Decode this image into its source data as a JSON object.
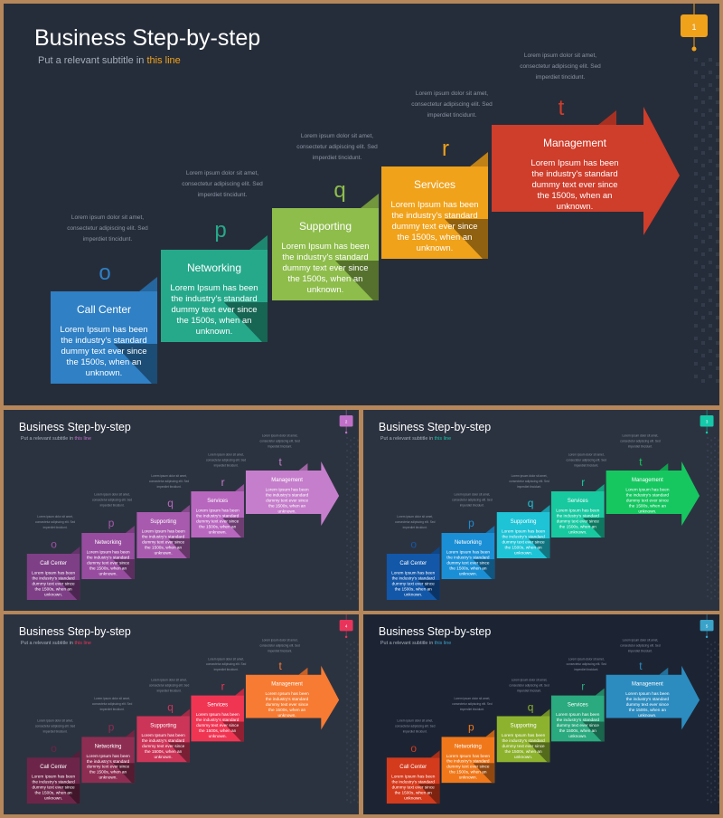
{
  "deck": {
    "title": "Business Step-by-step",
    "subtitle_prefix": "Put a relevant subtitle in ",
    "subtitle_highlight": "this line",
    "letters": [
      "o",
      "p",
      "q",
      "r",
      "t"
    ],
    "step_labels": [
      "Call Center",
      "Networking",
      "Supporting",
      "Services",
      "Management"
    ],
    "step_body_lines": [
      "Lorem Ipsum has been",
      "the industry's standard",
      "dummy text ever since",
      "the 1500s, when an",
      "unknown."
    ],
    "note_lines": [
      "Lorem ipsum dolor sit amet,",
      "consectetur adipiscing elit. Sed",
      "imperdiet tincidunt."
    ]
  },
  "slides": [
    {
      "page": "1",
      "bg": "#262d3a",
      "accent": "#f0a21b",
      "palette": [
        "#2f80c5",
        "#26a98b",
        "#8ebd4b",
        "#f0a21b",
        "#cf3d2b"
      ],
      "letter_colors": [
        "#2f80c5",
        "#26a98b",
        "#8ebd4b",
        "#f0a21b",
        "#cf3d2b"
      ]
    },
    {
      "page": "2",
      "bg": "#2c3340",
      "accent": "#c070c8",
      "palette": [
        "#7e3f86",
        "#984c9f",
        "#a85bae",
        "#b867bf",
        "#c57ecb"
      ],
      "letter_colors": [
        "#9b52a4",
        "#a85bae",
        "#b867bf",
        "#c57ecb",
        "#c57ecb"
      ]
    },
    {
      "page": "3",
      "bg": "#2c3340",
      "accent": "#14c8a8",
      "palette": [
        "#1357a8",
        "#1a8fd6",
        "#1ec3d6",
        "#18c9a0",
        "#16c760"
      ],
      "letter_colors": [
        "#1357a8",
        "#1a8fd6",
        "#1ec3d6",
        "#18c9a0",
        "#16c760"
      ]
    },
    {
      "page": "4",
      "bg": "#2c3340",
      "accent": "#e8345a",
      "palette": [
        "#6c2548",
        "#8e2d52",
        "#cc3558",
        "#f03553",
        "#f77b32"
      ],
      "letter_colors": [
        "#6c2548",
        "#8e2d52",
        "#cc3558",
        "#f03553",
        "#f77b32"
      ]
    },
    {
      "page": "5",
      "bg": "#1c2433",
      "accent": "#3ba3c9",
      "palette": [
        "#d43a1c",
        "#f0781a",
        "#8db32e",
        "#2aaa7e",
        "#2c8cc0"
      ],
      "letter_colors": [
        "#d43a1c",
        "#f0781a",
        "#8db32e",
        "#2aaa7e",
        "#2c8cc0"
      ]
    }
  ]
}
